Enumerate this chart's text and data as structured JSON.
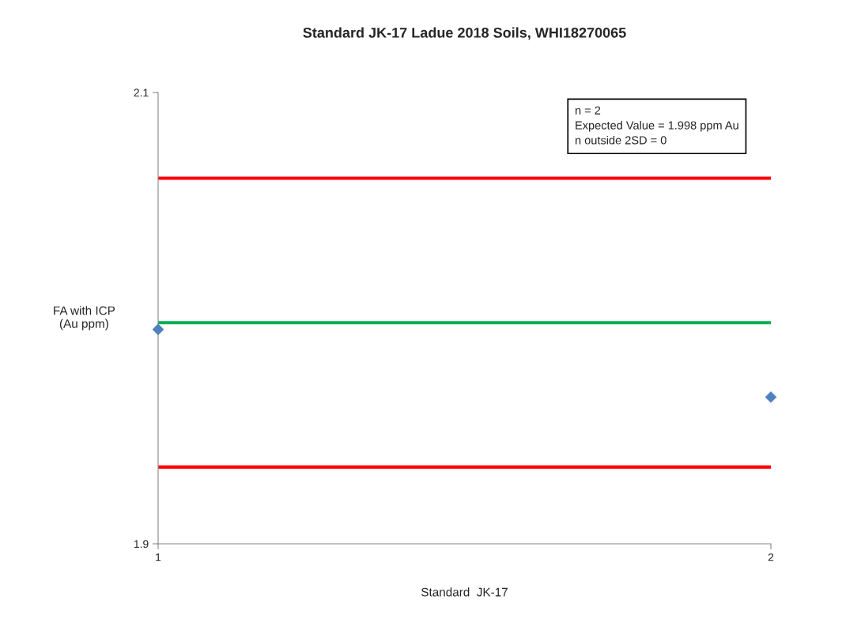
{
  "chart_data": {
    "type": "scatter",
    "title": "Standard JK-17 Ladue 2018 Soils, WHI18270065",
    "xlabel": "Standard  JK-17",
    "ylabel": "FA with ICP\n(Au ppm)",
    "x": [
      1,
      2
    ],
    "series": [
      {
        "color": "#4f81bd",
        "values": [
          1.995,
          1.965
        ]
      }
    ],
    "marker": "diamond",
    "xlim": [
      1,
      2
    ],
    "xticks": [
      1,
      2
    ],
    "ylim": [
      1.9,
      2.1
    ],
    "yticks": [
      1.9,
      2.1
    ],
    "ref_lines": [
      {
        "axis": "y",
        "value": 2.062,
        "color": "#ff0000",
        "line_style": "solid"
      },
      {
        "axis": "y",
        "value": 1.998,
        "color": "#00b050",
        "line_style": "solid"
      },
      {
        "axis": "y",
        "value": 1.934,
        "color": "#ff0000",
        "line_style": "solid"
      }
    ],
    "annotations": [
      "n = 2\nExpected Value = 1.998 ppm Au\nn outside 2SD = 0"
    ],
    "grid": false,
    "legend": false
  }
}
